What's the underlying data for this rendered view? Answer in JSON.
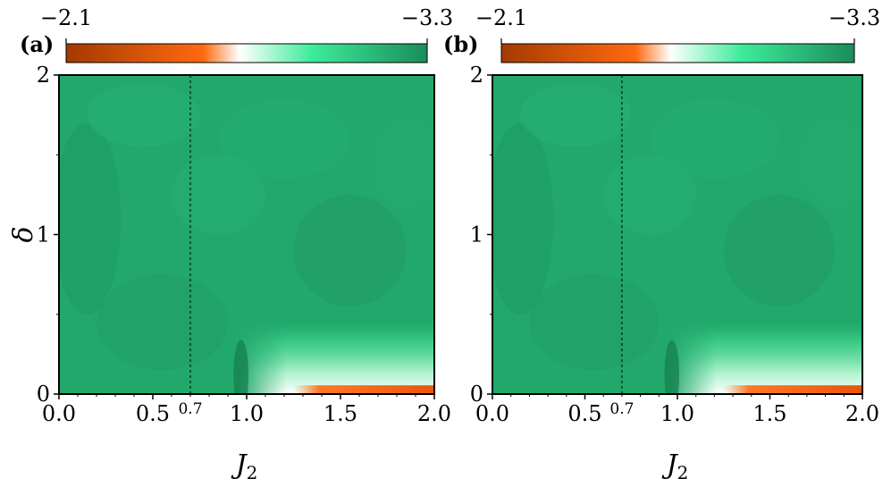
{
  "chart_data": [
    {
      "type": "heatmap",
      "panel_label": "(a)",
      "xlabel": "J",
      "xlabel_subscript": "2",
      "ylabel": "δ",
      "xlim": [
        0.0,
        2.0
      ],
      "ylim": [
        0,
        2
      ],
      "xticks": [
        {
          "value": 0.0,
          "label": "0.0"
        },
        {
          "value": 0.5,
          "label": "0.5"
        },
        {
          "value": 1.0,
          "label": "1.0"
        },
        {
          "value": 1.5,
          "label": "1.5"
        },
        {
          "value": 2.0,
          "label": "2.0"
        }
      ],
      "yticks": [
        {
          "value": 0,
          "label": "0"
        },
        {
          "value": 1,
          "label": "1"
        },
        {
          "value": 2,
          "label": "2"
        }
      ],
      "colorbar": {
        "min_label": "−2.1",
        "max_label": "−3.3",
        "range": [
          -2.1,
          -3.3
        ],
        "colors": [
          "#a33a00",
          "#ff6a10",
          "#ffffff",
          "#3dec9a",
          "#1a8c5a"
        ]
      },
      "annotations": [
        {
          "type": "vline",
          "x": 0.7,
          "style": "dashed",
          "label": "0.7"
        }
      ]
    },
    {
      "type": "heatmap",
      "panel_label": "(b)",
      "xlabel": "J",
      "xlabel_subscript": "2",
      "ylabel": "",
      "xlim": [
        0.0,
        2.0
      ],
      "ylim": [
        0,
        2
      ],
      "xticks": [
        {
          "value": 0.0,
          "label": "0.0"
        },
        {
          "value": 0.5,
          "label": "0.5"
        },
        {
          "value": 1.0,
          "label": "1.0"
        },
        {
          "value": 1.5,
          "label": "1.5"
        },
        {
          "value": 2.0,
          "label": "2.0"
        }
      ],
      "yticks": [
        {
          "value": 0,
          "label": "0"
        },
        {
          "value": 1,
          "label": "1"
        },
        {
          "value": 2,
          "label": "2"
        }
      ],
      "colorbar": {
        "min_label": "−2.1",
        "max_label": "−3.3",
        "range": [
          -2.1,
          -3.3
        ],
        "colors": [
          "#a33a00",
          "#ff6a10",
          "#ffffff",
          "#3dec9a",
          "#1a8c5a"
        ]
      },
      "annotations": [
        {
          "type": "vline",
          "x": 0.7,
          "style": "dashed",
          "label": "0.7"
        }
      ]
    }
  ]
}
